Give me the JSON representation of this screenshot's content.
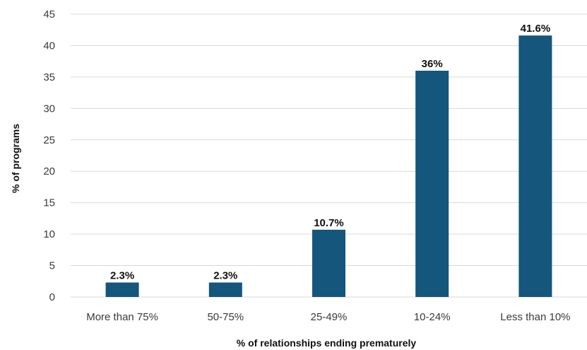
{
  "chart_data": {
    "type": "bar",
    "categories": [
      "More than 75%",
      "50-75%",
      "25-49%",
      "10-24%",
      "Less than 10%"
    ],
    "values": [
      2.3,
      2.3,
      10.7,
      36,
      41.6
    ],
    "data_labels": [
      "2.3%",
      "2.3%",
      "10.7%",
      "36%",
      "41.6%"
    ],
    "title": "",
    "xlabel": "% of relationships ending prematurely",
    "ylabel": "% of programs",
    "ylim": [
      0,
      45
    ],
    "yticks": [
      0,
      5,
      10,
      15,
      20,
      25,
      30,
      35,
      40,
      45
    ],
    "grid": true,
    "bar_color": "#14567c",
    "grid_color": "#d9d9d9"
  }
}
